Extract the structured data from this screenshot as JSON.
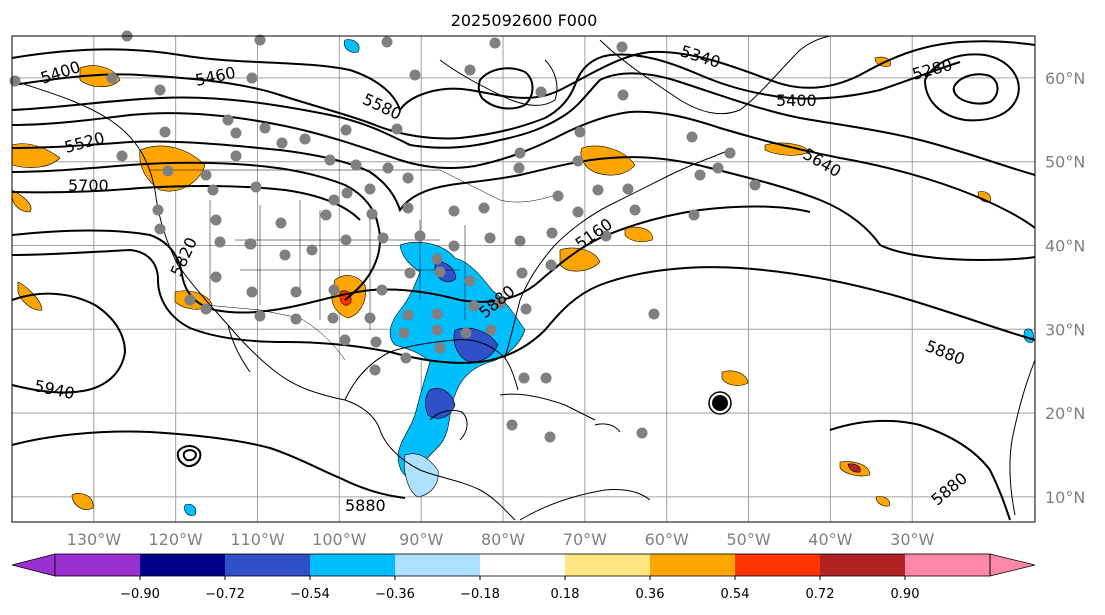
{
  "title": "2025092600 F000",
  "map": {
    "lon_range": [
      -140,
      -15
    ],
    "lat_range": [
      7,
      65
    ],
    "lon_ticks": [
      "130°W",
      "120°W",
      "110°W",
      "100°W",
      "90°W",
      "80°W",
      "70°W",
      "60°W",
      "50°W",
      "40°W",
      "30°W"
    ],
    "lat_ticks": [
      "60°N",
      "50°N",
      "40°N",
      "30°N",
      "20°N",
      "10°N"
    ],
    "contour_labels": [
      "5400",
      "5460",
      "5580",
      "5520",
      "5700",
      "5820",
      "5880",
      "5940",
      "5880",
      "5340",
      "5400",
      "5280",
      "5640",
      "5160",
      "5880",
      "5880"
    ],
    "storm_marker": "tropical-storm-marker"
  },
  "colorbar": {
    "ticks": [
      "−0.90",
      "−0.72",
      "−0.54",
      "−0.36",
      "−0.18",
      "0.18",
      "0.36",
      "0.54",
      "0.72",
      "0.90"
    ],
    "colors": [
      "#9b30d0",
      "#00008b",
      "#3050c8",
      "#00bfff",
      "#aee0ff",
      "#ffffff",
      "#ffe680",
      "#ffa500",
      "#ff3300",
      "#b22222",
      "#ff88aa"
    ],
    "under_color": "#9b30d0",
    "over_color": "#ff88aa"
  }
}
